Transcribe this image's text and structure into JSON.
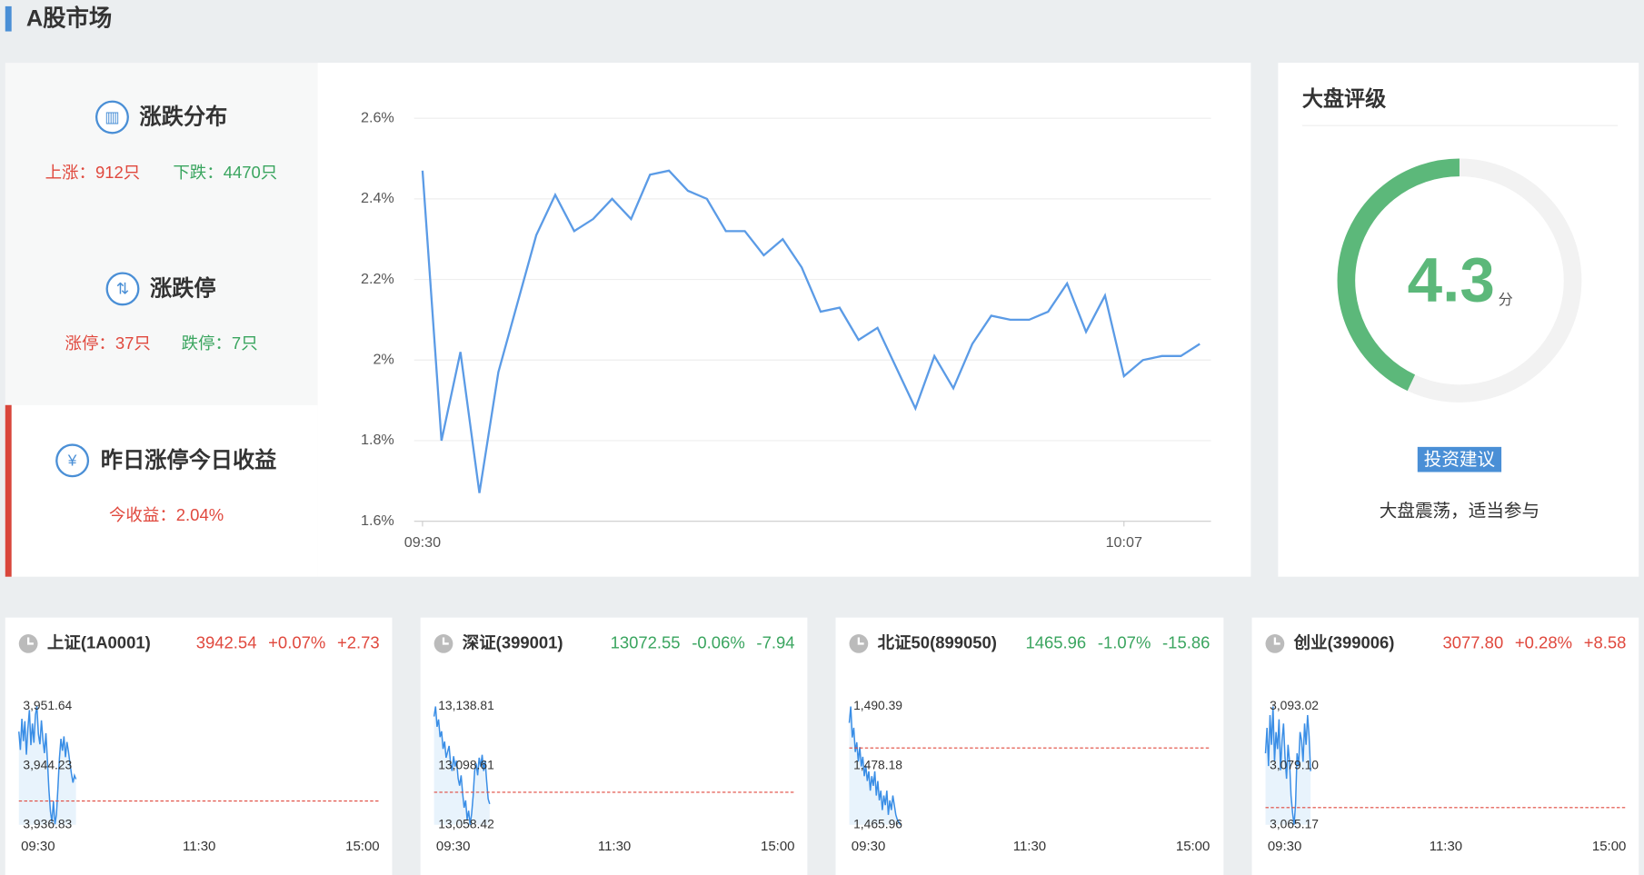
{
  "header": {
    "title": "A股市场"
  },
  "summary": [
    {
      "title": "涨跌分布",
      "items": [
        {
          "text": "上涨：912只",
          "color": "#e0483d"
        },
        {
          "text": "下跌：4470只",
          "color": "#3aa55f"
        }
      ]
    },
    {
      "title": "涨跌停",
      "items": [
        {
          "text": "涨停：37只",
          "color": "#e0483d"
        },
        {
          "text": "跌停：7只",
          "color": "#3aa55f"
        }
      ]
    },
    {
      "title": "昨日涨停今日收益",
      "items": [
        {
          "text": "今收益：2.04%",
          "color": "#e0483d"
        }
      ]
    }
  ],
  "chart_data": {
    "type": "line",
    "color": "#5b9be6",
    "grid": true,
    "categories": [
      "09:30",
      null,
      null,
      null,
      null,
      null,
      null,
      null,
      null,
      null,
      null,
      null,
      null,
      null,
      null,
      null,
      null,
      null,
      null,
      null,
      null,
      null,
      null,
      null,
      null,
      null,
      null,
      null,
      null,
      null,
      null,
      null,
      null,
      null,
      null,
      null,
      null,
      "10:07",
      null,
      null,
      null,
      null
    ],
    "values": [
      2.47,
      1.8,
      2.02,
      1.67,
      1.97,
      2.14,
      2.31,
      2.41,
      2.32,
      2.35,
      2.4,
      2.35,
      2.46,
      2.47,
      2.42,
      2.4,
      2.32,
      2.32,
      2.26,
      2.3,
      2.23,
      2.12,
      2.13,
      2.05,
      2.08,
      1.98,
      1.88,
      2.01,
      1.93,
      2.04,
      2.11,
      2.1,
      2.1,
      2.12,
      2.19,
      2.07,
      2.16,
      1.96,
      2.0,
      2.01,
      2.01,
      2.04
    ],
    "ylim": [
      1.6,
      2.6
    ],
    "yticks": [
      {
        "value": 1.6,
        "label": "1.6%"
      },
      {
        "value": 1.8,
        "label": "1.8%"
      },
      {
        "value": 2,
        "label": "2%"
      },
      {
        "value": 2.2,
        "label": "2.2%"
      },
      {
        "value": 2.4,
        "label": "2.4%"
      },
      {
        "value": 2.6,
        "label": "2.6%"
      }
    ]
  },
  "rating": {
    "title": "大盘评级",
    "score": 4.3,
    "unit": "分",
    "lim": [
      0,
      10
    ],
    "color": "#5cb87a",
    "tag": "投资建议",
    "advice": "大盘震荡，适当参与"
  },
  "indices": [
    {
      "name": "上证(1A0001)",
      "price": "3942.54",
      "pct": "+0.07%",
      "change": "+2.73",
      "color": "#e0483d",
      "chart": {
        "type": "line",
        "color": "#3a8ee6",
        "xlim": [
          0,
          240
        ],
        "xticks": [
          {
            "value": 0,
            "label": "09:30"
          },
          {
            "value": 120,
            "label": "11:30"
          },
          {
            "value": 240,
            "label": "15:00"
          }
        ],
        "ylim": [
          3936.83,
          3951.64
        ],
        "yticks": [
          {
            "value": 3936.83,
            "label": "3,936.83"
          },
          {
            "value": 3944.235,
            "label": "3,944.23"
          },
          {
            "value": 3951.64,
            "label": "3,951.64"
          }
        ],
        "baseline": 3939.81,
        "baseline_color": "#e0483d",
        "values": [
          3948.5,
          3946.2,
          3950.1,
          3947.3,
          3949.8,
          3945.6,
          3948.9,
          3951.2,
          3946.8,
          3949.5,
          3947.1,
          3950.6,
          3951.64,
          3948.2,
          3946.9,
          3949.9,
          3947.5,
          3945.8,
          3948.3,
          3944.9,
          3941.2,
          3938.5,
          3937.2,
          3939.8,
          3936.9,
          3938.1,
          3941.5,
          3945.2,
          3947.6,
          3946.1,
          3947.9,
          3945.3,
          3947.2,
          3946.0,
          3944.5,
          3943.2,
          3942.1,
          3943.0,
          3942.54
        ]
      }
    },
    {
      "name": "深证(399001)",
      "price": "13072.55",
      "pct": "-0.06%",
      "change": "-7.94",
      "color": "#3aa55f",
      "chart": {
        "type": "line",
        "color": "#3a8ee6",
        "xlim": [
          0,
          240
        ],
        "xticks": [
          {
            "value": 0,
            "label": "09:30"
          },
          {
            "value": 120,
            "label": "11:30"
          },
          {
            "value": 240,
            "label": "15:00"
          }
        ],
        "ylim": [
          13058.42,
          13138.81
        ],
        "yticks": [
          {
            "value": 13058.42,
            "label": "13,058.42"
          },
          {
            "value": 13098.615,
            "label": "13,098.61"
          },
          {
            "value": 13138.81,
            "label": "13,138.81"
          }
        ],
        "baseline": 13080.49,
        "baseline_color": "#e0483d",
        "values": [
          13132,
          13138.81,
          13125,
          13130,
          13118,
          13122,
          13110,
          13115,
          13104,
          13108,
          13112,
          13100,
          13095,
          13105,
          13098,
          13102,
          13090,
          13085,
          13092,
          13080,
          13070,
          13075,
          13062,
          13068,
          13058.42,
          13066,
          13078,
          13095,
          13100,
          13092,
          13104,
          13098,
          13106,
          13095,
          13102,
          13088,
          13076,
          13072.55
        ]
      }
    },
    {
      "name": "北证50(899050)",
      "price": "1465.96",
      "pct": "-1.07%",
      "change": "-15.86",
      "color": "#3aa55f",
      "chart": {
        "type": "line",
        "color": "#3a8ee6",
        "xlim": [
          0,
          240
        ],
        "xticks": [
          {
            "value": 0,
            "label": "09:30"
          },
          {
            "value": 120,
            "label": "11:30"
          },
          {
            "value": 240,
            "label": "15:00"
          }
        ],
        "ylim": [
          1465.96,
          1490.39
        ],
        "yticks": [
          {
            "value": 1465.96,
            "label": "1,465.96"
          },
          {
            "value": 1478.175,
            "label": "1,478.18"
          },
          {
            "value": 1490.39,
            "label": "1,490.39"
          }
        ],
        "baseline": 1481.82,
        "baseline_color": "#e0483d",
        "values": [
          1487,
          1490.39,
          1484,
          1486,
          1481,
          1483,
          1479,
          1482,
          1478,
          1480,
          1476,
          1478.18,
          1475,
          1477,
          1473,
          1476,
          1474,
          1477,
          1472,
          1475,
          1471,
          1473,
          1469,
          1472,
          1470,
          1473,
          1468,
          1471,
          1469,
          1472,
          1470,
          1468,
          1467,
          1466.5,
          1465.96
        ]
      }
    },
    {
      "name": "创业(399006)",
      "price": "3077.80",
      "pct": "+0.28%",
      "change": "+8.58",
      "color": "#e0483d",
      "chart": {
        "type": "line",
        "color": "#3a8ee6",
        "xlim": [
          0,
          240
        ],
        "xticks": [
          {
            "value": 0,
            "label": "09:30"
          },
          {
            "value": 120,
            "label": "11:30"
          },
          {
            "value": 240,
            "label": "15:00"
          }
        ],
        "ylim": [
          3065.17,
          3093.02
        ],
        "yticks": [
          {
            "value": 3065.17,
            "label": "3,065.17"
          },
          {
            "value": 3079.095,
            "label": "3,079.10"
          },
          {
            "value": 3093.02,
            "label": "3,093.02"
          }
        ],
        "baseline": 3069.22,
        "baseline_color": "#e0483d",
        "values": [
          3082,
          3088,
          3079,
          3091,
          3084,
          3093.02,
          3080,
          3087,
          3083,
          3090,
          3078,
          3085,
          3089,
          3081,
          3076,
          3084,
          3080,
          3072,
          3068,
          3065.17,
          3070,
          3082,
          3079,
          3087,
          3085,
          3080,
          3089,
          3084,
          3091,
          3086,
          3077.8
        ]
      }
    }
  ]
}
